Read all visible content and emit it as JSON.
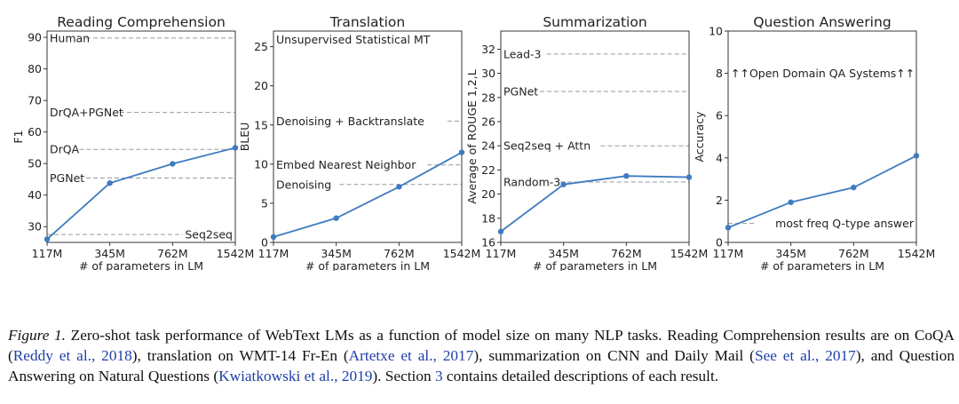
{
  "chart_data": [
    {
      "type": "line",
      "title": "Reading Comprehension",
      "xlabel": "# of parameters in LM",
      "ylabel": "F1",
      "categories": [
        "117M",
        "345M",
        "762M",
        "1542M"
      ],
      "values": [
        26,
        43.8,
        49.9,
        55.0
      ],
      "ylim": [
        25,
        92
      ],
      "yticks": [
        30,
        40,
        50,
        60,
        70,
        80,
        90
      ],
      "color": "#3e7bbf",
      "references": [
        {
          "label": "Human",
          "value": 89.8,
          "align": "left"
        },
        {
          "label": "DrQA+PGNet",
          "value": 66.2,
          "align": "left"
        },
        {
          "label": "DrQA",
          "value": 54.5,
          "align": "left"
        },
        {
          "label": "PGNet",
          "value": 45.4,
          "align": "left"
        },
        {
          "label": "Seq2seq",
          "value": 27.5,
          "align": "right"
        }
      ]
    },
    {
      "type": "line",
      "title": "Translation",
      "xlabel": "# of parameters in LM",
      "ylabel": "BLEU",
      "categories": [
        "117M",
        "345M",
        "762M",
        "1542M"
      ],
      "values": [
        0.7,
        3.1,
        7.1,
        11.5
      ],
      "ylim": [
        0,
        27
      ],
      "yticks": [
        0,
        5,
        10,
        15,
        20,
        25
      ],
      "color": "#3e7bbf",
      "references": [
        {
          "label": "Unsupervised Statistical MT",
          "value": 25.9,
          "align": "left"
        },
        {
          "label": "Denoising + Backtranslate",
          "value": 15.5,
          "align": "left"
        },
        {
          "label": "Embed Nearest Neighbor",
          "value": 9.9,
          "align": "left"
        },
        {
          "label": "Denoising",
          "value": 7.4,
          "align": "left"
        }
      ]
    },
    {
      "type": "line",
      "title": "Summarization",
      "xlabel": "# of parameters in LM",
      "ylabel": "Average of ROUGE 1,2,L",
      "categories": [
        "117M",
        "345M",
        "762M",
        "1542M"
      ],
      "values": [
        16.9,
        20.8,
        21.5,
        21.4
      ],
      "ylim": [
        16,
        33.5
      ],
      "yticks": [
        16,
        18,
        20,
        22,
        24,
        26,
        28,
        30,
        32
      ],
      "color": "#3e7bbf",
      "references": [
        {
          "label": "Lead-3",
          "value": 31.6,
          "align": "left"
        },
        {
          "label": "PGNet",
          "value": 28.5,
          "align": "left"
        },
        {
          "label": "Seq2seq + Attn",
          "value": 24.0,
          "align": "left"
        },
        {
          "label": "Random-3",
          "value": 21.0,
          "align": "left"
        }
      ]
    },
    {
      "type": "line",
      "title": "Question Answering",
      "xlabel": "# of parameters in LM",
      "ylabel": "Accuracy",
      "categories": [
        "117M",
        "345M",
        "762M",
        "1542M"
      ],
      "values": [
        0.7,
        1.9,
        2.6,
        4.1
      ],
      "ylim": [
        0,
        10
      ],
      "yticks": [
        0,
        2,
        4,
        6,
        8,
        10
      ],
      "color": "#3e7bbf",
      "references": [
        {
          "label": "↑↑Open Domain QA Systems↑↑",
          "value": 8.0,
          "align": "left",
          "noLine": true
        },
        {
          "label": "most freq Q-type answer",
          "value": 0.9,
          "align": "right"
        }
      ]
    }
  ],
  "caption": {
    "label": "Figure 1.",
    "part1": "Zero-shot task performance of WebText LMs as a function of model size on many NLP tasks. Reading Comprehension results are on CoQA (",
    "cite1": "Reddy et al., 2018",
    "part2": "), translation on WMT-14 Fr-En (",
    "cite2": "Artetxe et al., 2017",
    "part3": "), summarization on CNN and Daily Mail (",
    "cite3": "See et al., 2017",
    "part4": "), and Question Answering on Natural Questions (",
    "cite4": "Kwiatkowski et al., 2019",
    "part5": "). Section ",
    "cite5": "3",
    "part6": " contains detailed descriptions of each result."
  }
}
